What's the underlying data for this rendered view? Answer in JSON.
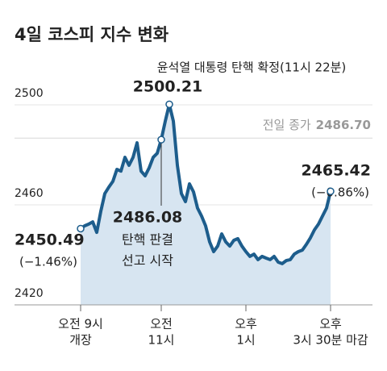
{
  "chart_data": {
    "type": "line",
    "title": "4일 코스피 지수 변화",
    "series": [
      {
        "color": "#1d5d8c",
        "fill": "#d7e5f1",
        "values": [
          2450.49,
          2451.6,
          2452.3,
          2453.2,
          2449.0,
          2457.4,
          2464.5,
          2467.1,
          2469.4,
          2474.2,
          2473.5,
          2479.0,
          2475.8,
          2479.0,
          2484.8,
          2473.5,
          2471.6,
          2474.8,
          2479.0,
          2480.6,
          2486.08,
          2493.5,
          2500.21,
          2493.5,
          2475.8,
          2464.5,
          2461.3,
          2468.4,
          2465.2,
          2458.7,
          2455.5,
          2451.6,
          2445.2,
          2441.3,
          2443.5,
          2448.4,
          2445.2,
          2443.5,
          2445.8,
          2446.5,
          2443.5,
          2441.3,
          2439.4,
          2440.3,
          2438.1,
          2439.4,
          2438.7,
          2438.1,
          2439.4,
          2437.1,
          2436.5,
          2437.7,
          2438.1,
          2440.3,
          2441.3,
          2441.9,
          2444.2,
          2446.8,
          2450.0,
          2452.3,
          2455.5,
          2458.7,
          2465.42
        ]
      }
    ],
    "xlim": [
      0,
      62
    ],
    "xticks": [
      {
        "value": 0,
        "label": [
          "오전 9시",
          "개장"
        ]
      },
      {
        "value": 20,
        "label": [
          "오전",
          "11시"
        ]
      },
      {
        "value": 41,
        "label": [
          "오후",
          "1시"
        ]
      },
      {
        "value": 62,
        "label": [
          "오후",
          "3시 30분 마감"
        ]
      }
    ],
    "ylim": [
      2420,
      2510
    ],
    "yticks": [
      2420,
      2460,
      2500
    ],
    "grid": true,
    "reference": {
      "label": "전일 종가",
      "value": 2486.7,
      "value_label": "2486.70"
    },
    "annotations": [
      {
        "text": "윤석열 대통령 탄핵 확정(11시 22분)"
      },
      {
        "text": [
          "탄핵 판결",
          "선고 시작"
        ]
      },
      {
        "text": "(−1.46%)"
      },
      {
        "text": "(−0.86%)"
      }
    ]
  }
}
